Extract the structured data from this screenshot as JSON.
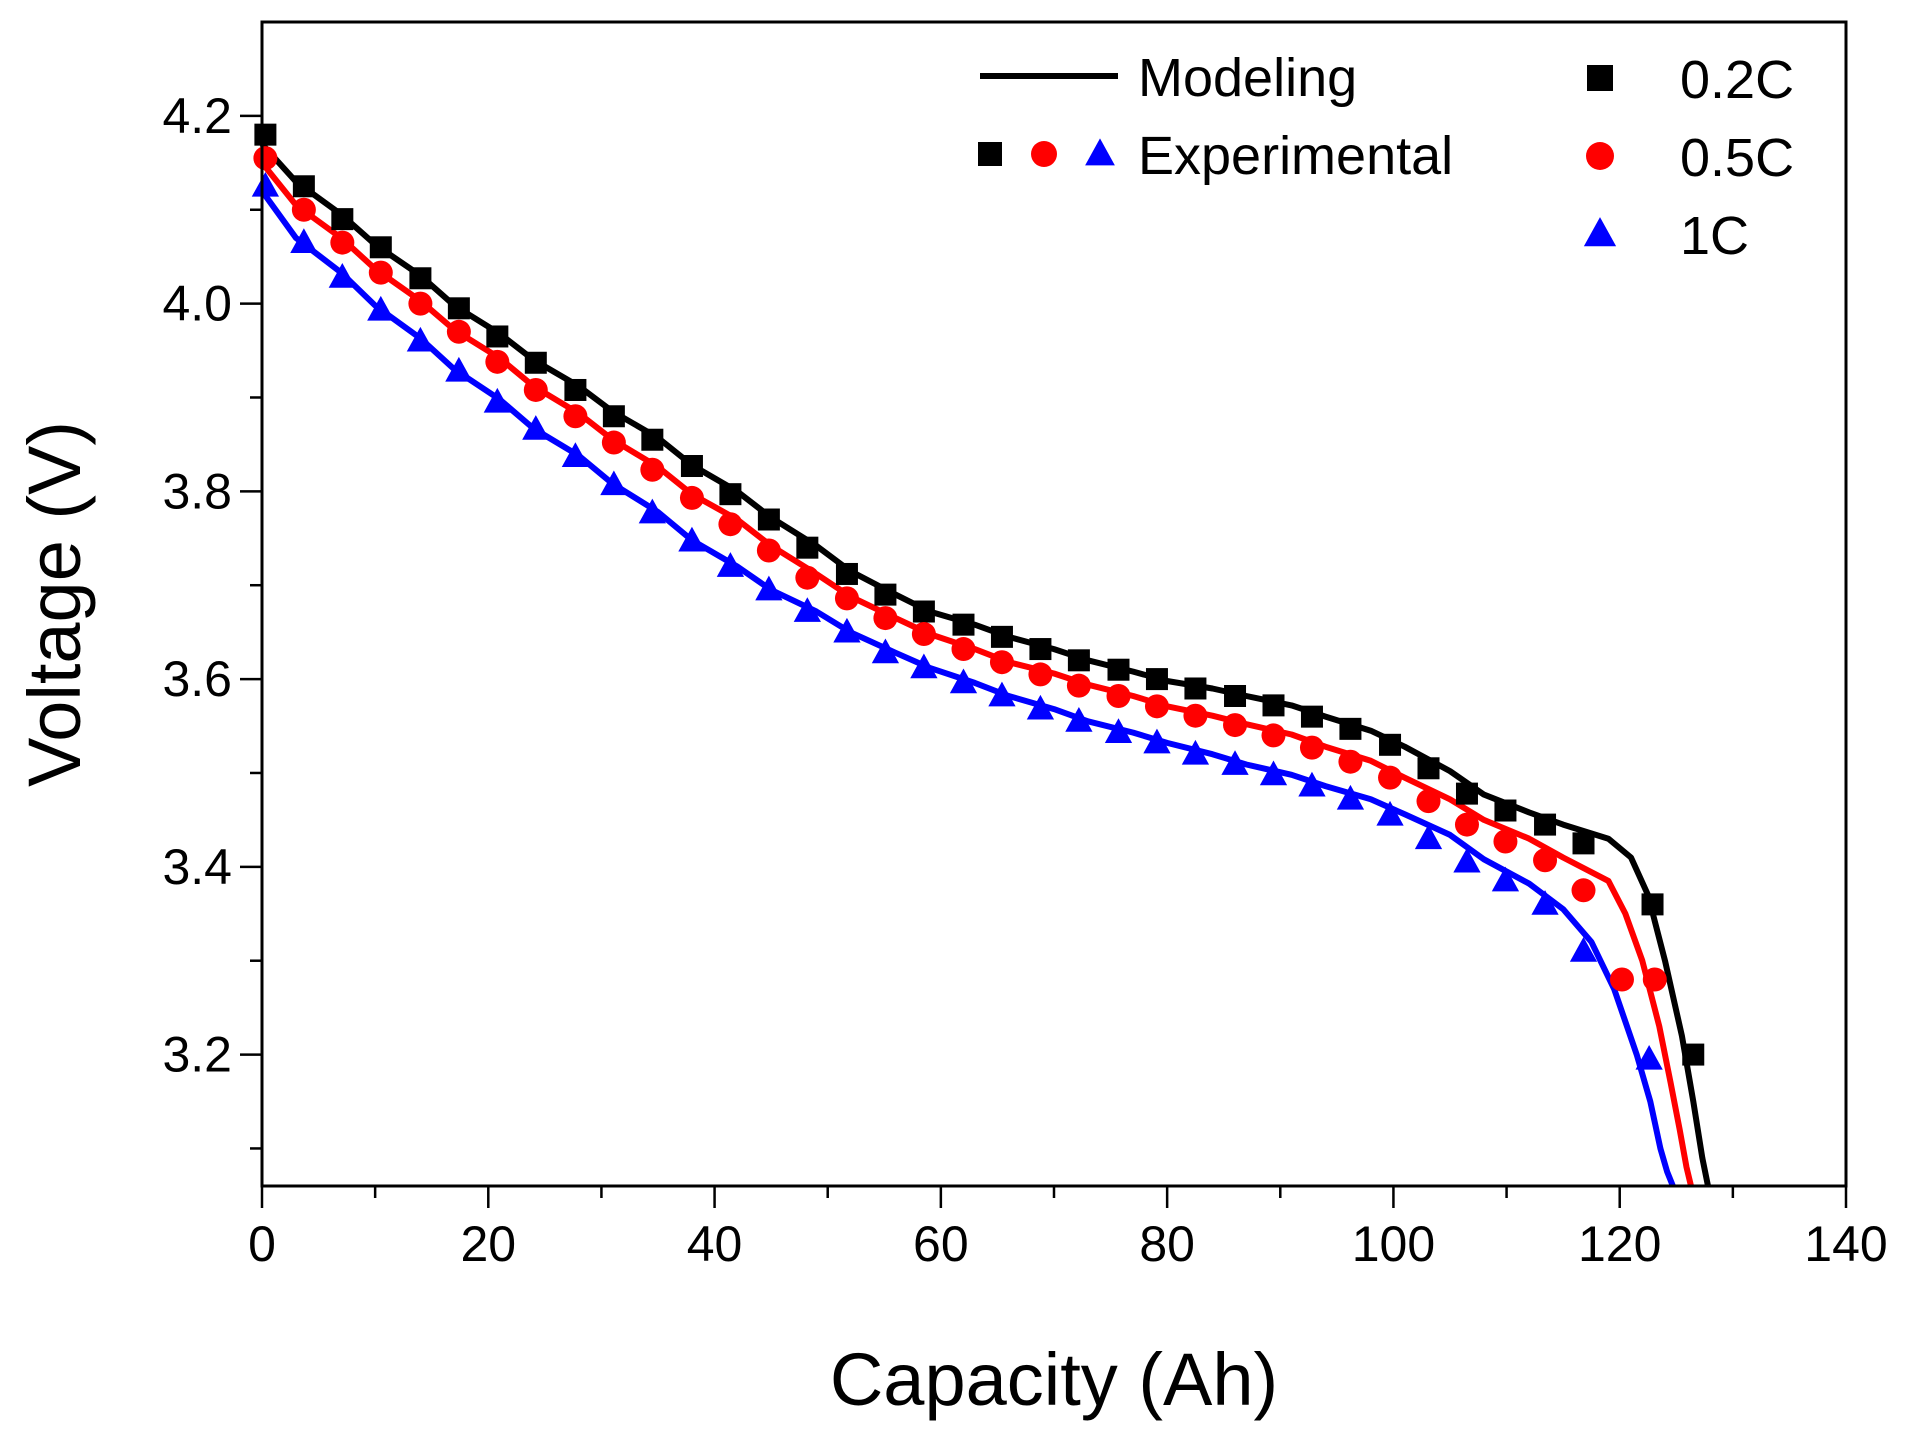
{
  "chart_data": {
    "type": "line",
    "xlabel": "Capacity (Ah)",
    "ylabel": "Voltage (V)",
    "xlim": [
      0,
      140
    ],
    "ylim": [
      3.06,
      4.3
    ],
    "x_ticks": [
      0,
      20,
      40,
      60,
      80,
      100,
      120,
      140
    ],
    "x_tick_labels": [
      "0",
      "20",
      "40",
      "60",
      "80",
      "100",
      "120",
      "140"
    ],
    "y_ticks": [
      3.2,
      3.4,
      3.6,
      3.8,
      4.0,
      4.2
    ],
    "y_tick_labels": [
      "3.2",
      "3.4",
      "3.6",
      "3.8",
      "4.0",
      "4.2"
    ],
    "grid": false,
    "legend": {
      "placement": "top-right",
      "modeling_label": "Modeling",
      "experimental_label": "Experimental"
    },
    "series": [
      {
        "name": "0.2C",
        "color": "#000000",
        "marker": "square",
        "model": {
          "x": [
            0,
            3,
            7,
            10,
            14,
            17,
            21,
            24,
            28,
            31,
            35,
            38,
            42,
            45,
            49,
            52,
            56,
            59,
            63,
            66,
            70,
            73,
            77,
            80,
            84,
            87,
            91,
            94,
            98,
            101,
            105,
            108,
            112,
            115,
            119,
            121,
            122.5,
            124,
            125.5,
            126.5,
            127.3,
            127.8
          ],
          "y": [
            4.17,
            4.13,
            4.095,
            4.063,
            4.03,
            3.998,
            3.968,
            3.94,
            3.912,
            3.885,
            3.857,
            3.828,
            3.8,
            3.772,
            3.742,
            3.715,
            3.69,
            3.672,
            3.658,
            3.645,
            3.632,
            3.62,
            3.608,
            3.598,
            3.59,
            3.582,
            3.572,
            3.56,
            3.545,
            3.528,
            3.502,
            3.477,
            3.458,
            3.445,
            3.43,
            3.41,
            3.37,
            3.3,
            3.22,
            3.15,
            3.09,
            3.06
          ]
        },
        "experimental": {
          "x": [
            0.3,
            3.7,
            7.1,
            10.5,
            14.0,
            17.4,
            20.8,
            24.2,
            27.7,
            31.1,
            34.5,
            38.0,
            41.4,
            44.8,
            48.2,
            51.7,
            55.1,
            58.5,
            62.0,
            65.4,
            68.8,
            72.2,
            75.7,
            79.1,
            82.5,
            86.0,
            89.4,
            92.8,
            96.2,
            99.7,
            103.1,
            106.5,
            109.9,
            113.4,
            116.8,
            122.9,
            126.5
          ],
          "y": [
            4.18,
            4.125,
            4.09,
            4.06,
            4.027,
            3.995,
            3.965,
            3.937,
            3.908,
            3.88,
            3.855,
            3.827,
            3.797,
            3.77,
            3.74,
            3.712,
            3.69,
            3.672,
            3.658,
            3.645,
            3.632,
            3.62,
            3.61,
            3.6,
            3.59,
            3.582,
            3.572,
            3.56,
            3.547,
            3.53,
            3.505,
            3.478,
            3.46,
            3.445,
            3.425,
            3.36,
            3.2
          ]
        }
      },
      {
        "name": "0.5C",
        "color": "#ff0000",
        "marker": "circle",
        "model": {
          "x": [
            0,
            3,
            7,
            10,
            14,
            17,
            21,
            24,
            28,
            31,
            35,
            38,
            42,
            45,
            49,
            52,
            56,
            59,
            63,
            66,
            70,
            73,
            77,
            80,
            84,
            87,
            91,
            94,
            98,
            101,
            105,
            108,
            112,
            115,
            119,
            120.5,
            122,
            123.5,
            124.5,
            125.3,
            125.9,
            126.3
          ],
          "y": [
            4.15,
            4.105,
            4.07,
            4.037,
            4.003,
            3.972,
            3.942,
            3.912,
            3.883,
            3.855,
            3.826,
            3.797,
            3.77,
            3.742,
            3.712,
            3.688,
            3.665,
            3.648,
            3.632,
            3.618,
            3.606,
            3.594,
            3.582,
            3.571,
            3.561,
            3.552,
            3.541,
            3.528,
            3.513,
            3.495,
            3.472,
            3.45,
            3.43,
            3.41,
            3.385,
            3.35,
            3.3,
            3.23,
            3.17,
            3.12,
            3.08,
            3.06
          ]
        },
        "experimental": {
          "x": [
            0.3,
            3.7,
            7.1,
            10.5,
            14.0,
            17.4,
            20.8,
            24.2,
            27.7,
            31.1,
            34.5,
            38.0,
            41.4,
            44.8,
            48.2,
            51.7,
            55.1,
            58.5,
            62.0,
            65.4,
            68.8,
            72.2,
            75.7,
            79.1,
            82.5,
            86.0,
            89.4,
            92.8,
            96.2,
            99.7,
            103.1,
            106.5,
            109.9,
            113.4,
            116.8,
            120.2,
            123.1
          ],
          "y": [
            4.155,
            4.1,
            4.065,
            4.033,
            4.0,
            3.97,
            3.938,
            3.908,
            3.88,
            3.852,
            3.823,
            3.793,
            3.765,
            3.737,
            3.708,
            3.686,
            3.665,
            3.648,
            3.632,
            3.618,
            3.605,
            3.593,
            3.582,
            3.571,
            3.561,
            3.551,
            3.54,
            3.527,
            3.512,
            3.495,
            3.47,
            3.445,
            3.427,
            3.407,
            3.375,
            3.28,
            3.28
          ]
        }
      },
      {
        "name": "1C",
        "color": "#0000ff",
        "marker": "triangle",
        "model": {
          "x": [
            0,
            3,
            7,
            10,
            14,
            17,
            21,
            24,
            28,
            31,
            35,
            38,
            42,
            45,
            49,
            52,
            56,
            59,
            63,
            66,
            70,
            73,
            77,
            80,
            84,
            87,
            91,
            94,
            98,
            101,
            105,
            108,
            112,
            115,
            117.5,
            119.5,
            121.5,
            122.7,
            123.6,
            124.2,
            124.7
          ],
          "y": [
            4.12,
            4.07,
            4.033,
            3.998,
            3.963,
            3.93,
            3.898,
            3.867,
            3.838,
            3.808,
            3.778,
            3.748,
            3.72,
            3.695,
            3.672,
            3.65,
            3.628,
            3.612,
            3.596,
            3.582,
            3.568,
            3.555,
            3.543,
            3.532,
            3.52,
            3.509,
            3.498,
            3.486,
            3.472,
            3.456,
            3.434,
            3.408,
            3.382,
            3.355,
            3.32,
            3.27,
            3.2,
            3.15,
            3.1,
            3.075,
            3.06
          ]
        },
        "experimental": {
          "x": [
            0.3,
            3.7,
            7.1,
            10.5,
            14.0,
            17.4,
            20.8,
            24.2,
            27.7,
            31.1,
            34.5,
            38.0,
            41.4,
            44.8,
            48.2,
            51.7,
            55.1,
            58.5,
            62.0,
            65.4,
            68.8,
            72.2,
            75.7,
            79.1,
            82.5,
            86.0,
            89.4,
            92.8,
            96.2,
            99.7,
            103.1,
            106.5,
            109.9,
            113.4,
            116.8,
            122.6
          ],
          "y": [
            4.125,
            4.065,
            4.028,
            3.993,
            3.96,
            3.928,
            3.895,
            3.866,
            3.837,
            3.807,
            3.777,
            3.747,
            3.72,
            3.695,
            3.672,
            3.65,
            3.628,
            3.612,
            3.596,
            3.582,
            3.568,
            3.555,
            3.543,
            3.532,
            3.52,
            3.509,
            3.498,
            3.486,
            3.472,
            3.455,
            3.43,
            3.405,
            3.385,
            3.36,
            3.31,
            3.195
          ]
        }
      }
    ]
  }
}
